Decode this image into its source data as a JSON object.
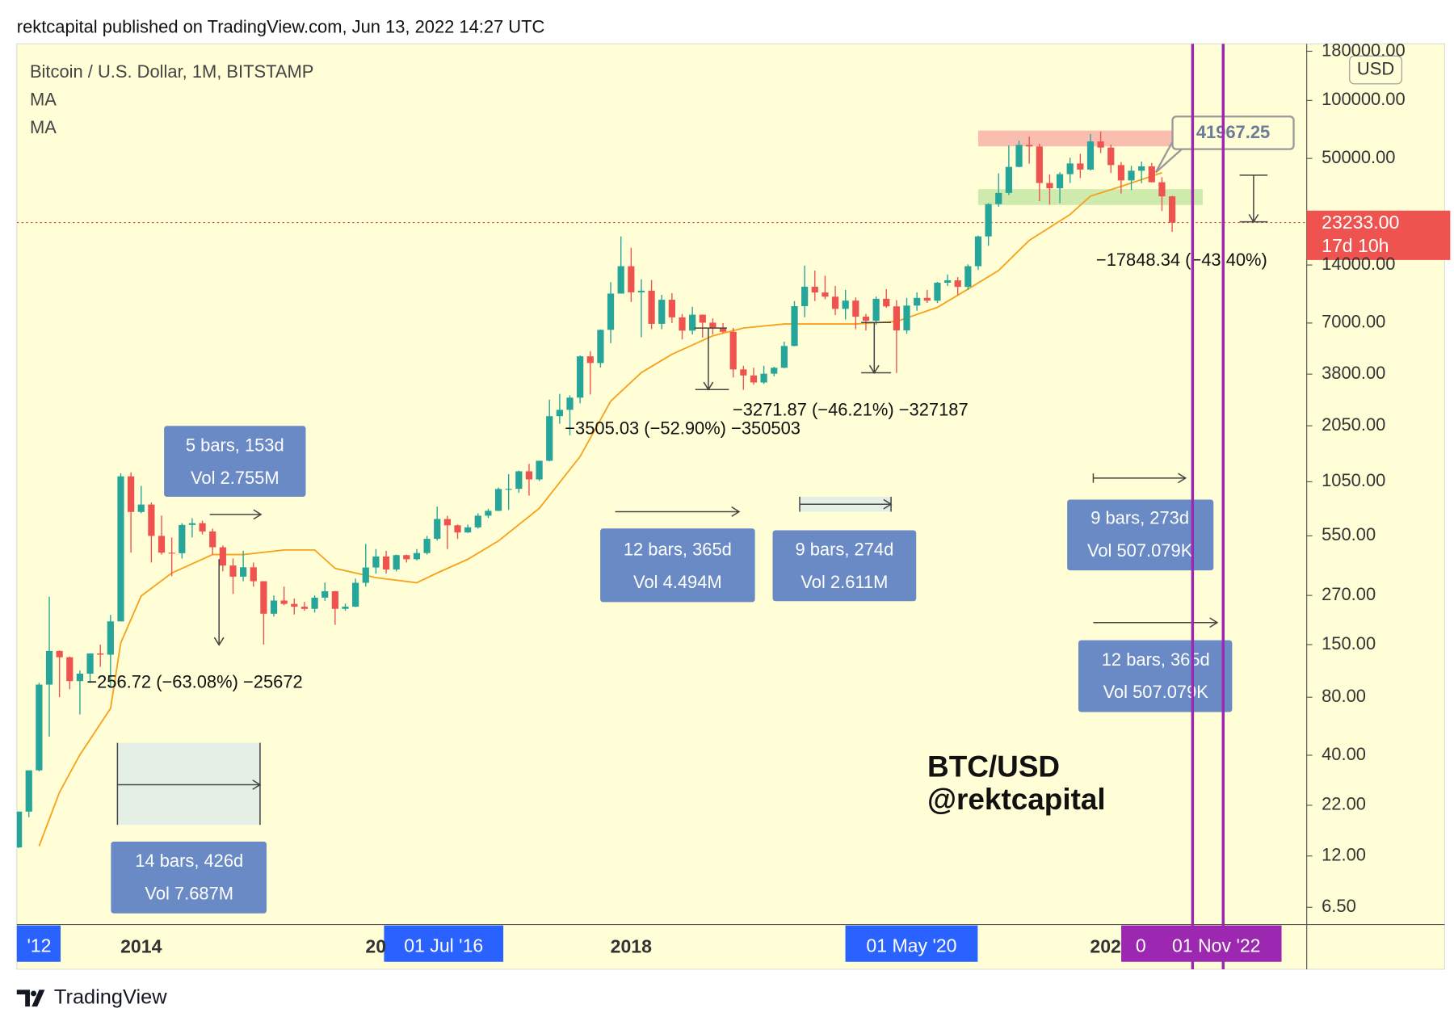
{
  "header": "rektcapital published on TradingView.com, Jun 13, 2022 14:27 UTC",
  "footer": "TradingView",
  "watermark": [
    "BTC/USD",
    "@rektcapital"
  ],
  "chart_data": {
    "type": "candlestick",
    "title": "Bitcoin / U.S. Dollar, 1M, BITSTAMP",
    "legend_items": [
      "MA",
      "MA"
    ],
    "y_unit": "USD",
    "log_scale": true,
    "up_color": "#26a69a",
    "down_color": "#ef5350",
    "x": [
      "2013-01",
      "2013-02",
      "2013-03",
      "2013-04",
      "2013-05",
      "2013-06",
      "2013-07",
      "2013-08",
      "2013-09",
      "2013-10",
      "2013-11",
      "2013-12",
      "2014-01",
      "2014-02",
      "2014-03",
      "2014-04",
      "2014-05",
      "2014-06",
      "2014-07",
      "2014-08",
      "2014-09",
      "2014-10",
      "2014-11",
      "2014-12",
      "2015-01",
      "2015-02",
      "2015-03",
      "2015-04",
      "2015-05",
      "2015-06",
      "2015-07",
      "2015-08",
      "2015-09",
      "2015-10",
      "2015-11",
      "2015-12",
      "2016-01",
      "2016-02",
      "2016-03",
      "2016-04",
      "2016-05",
      "2016-06",
      "2016-07",
      "2016-08",
      "2016-09",
      "2016-10",
      "2016-11",
      "2016-12",
      "2017-01",
      "2017-02",
      "2017-03",
      "2017-04",
      "2017-05",
      "2017-06",
      "2017-07",
      "2017-08",
      "2017-09",
      "2017-10",
      "2017-11",
      "2017-12",
      "2018-01",
      "2018-02",
      "2018-03",
      "2018-04",
      "2018-05",
      "2018-06",
      "2018-07",
      "2018-08",
      "2018-09",
      "2018-10",
      "2018-11",
      "2018-12",
      "2019-01",
      "2019-02",
      "2019-03",
      "2019-04",
      "2019-05",
      "2019-06",
      "2019-07",
      "2019-08",
      "2019-09",
      "2019-10",
      "2019-11",
      "2019-12",
      "2020-01",
      "2020-02",
      "2020-03",
      "2020-04",
      "2020-05",
      "2020-06",
      "2020-07",
      "2020-08",
      "2020-09",
      "2020-10",
      "2020-11",
      "2020-12",
      "2021-01",
      "2021-02",
      "2021-03",
      "2021-04",
      "2021-05",
      "2021-06",
      "2021-07",
      "2021-08",
      "2021-09",
      "2021-10",
      "2021-11",
      "2021-12",
      "2022-01",
      "2022-02",
      "2022-03",
      "2022-04",
      "2022-05",
      "2022-06"
    ],
    "open": [
      13.3,
      20.4,
      33.4,
      93,
      139,
      129,
      97,
      106,
      135,
      133,
      198,
      1120,
      732,
      800,
      550,
      450,
      447,
      627,
      640,
      580,
      480,
      386,
      338,
      378,
      320,
      217,
      254,
      244,
      236,
      230,
      263,
      284,
      230,
      236,
      314,
      377,
      430,
      368,
      437,
      416,
      448,
      531,
      673,
      624,
      573,
      609,
      700,
      742,
      963,
      965,
      1190,
      1080,
      1350,
      2300,
      2480,
      2870,
      4700,
      4340,
      6450,
      9950,
      13800,
      10100,
      10300,
      6930,
      9240,
      7490,
      6390,
      7730,
      7030,
      6630,
      6300,
      4020,
      3740,
      3440,
      3820,
      4100,
      5320,
      8560,
      10800,
      10080,
      9590,
      8290,
      9150,
      7550,
      7190,
      9350,
      8540,
      6410,
      8620,
      9450,
      9140,
      11330,
      11650,
      10780,
      13800,
      19700,
      28990,
      33100,
      45200,
      58800,
      57700,
      37300,
      35040,
      41460,
      47100,
      43790,
      61300,
      56950,
      46200,
      38470,
      43190,
      45510,
      37630,
      31790
    ],
    "high": [
      20.4,
      33.4,
      95,
      266,
      140,
      130,
      110,
      135,
      150,
      214,
      1163,
      1175,
      1000,
      820,
      700,
      540,
      640,
      680,
      660,
      600,
      490,
      420,
      460,
      400,
      320,
      270,
      300,
      260,
      250,
      270,
      315,
      285,
      245,
      330,
      500,
      470,
      460,
      440,
      440,
      470,
      550,
      780,
      700,
      630,
      630,
      720,
      760,
      980,
      1150,
      1200,
      1300,
      1350,
      2800,
      3000,
      2950,
      4750,
      5000,
      6470,
      11400,
      19700,
      17200,
      11800,
      11700,
      9800,
      10000,
      7800,
      8500,
      7750,
      7400,
      7000,
      6600,
      4200,
      4100,
      4200,
      4150,
      5600,
      9100,
      13900,
      13100,
      12300,
      10900,
      10400,
      9500,
      7800,
      9600,
      10500,
      9200,
      9450,
      10100,
      10400,
      11450,
      12500,
      12100,
      14100,
      19900,
      29300,
      41900,
      58400,
      61800,
      64900,
      59600,
      41300,
      42400,
      50500,
      52900,
      67000,
      69000,
      59000,
      47900,
      45800,
      48200,
      47400,
      40000,
      31990
    ],
    "low": [
      13.2,
      19.1,
      33,
      50,
      80,
      88,
      65,
      95,
      115,
      90,
      198,
      450,
      720,
      400,
      440,
      340,
      420,
      540,
      560,
      440,
      360,
      275,
      320,
      300,
      150,
      210,
      240,
      215,
      225,
      220,
      253,
      190,
      225,
      235,
      300,
      350,
      350,
      360,
      400,
      410,
      440,
      520,
      470,
      530,
      570,
      600,
      680,
      740,
      750,
      920,
      890,
      1060,
      1340,
      2100,
      1830,
      2680,
      2980,
      4110,
      5500,
      9950,
      9000,
      5900,
      6500,
      6500,
      7000,
      5750,
      6100,
      5880,
      6100,
      6200,
      3650,
      3150,
      3350,
      3380,
      3700,
      4080,
      5300,
      7500,
      9100,
      9300,
      7700,
      7300,
      6500,
      6400,
      6850,
      8400,
      3850,
      6150,
      8100,
      8900,
      8900,
      10900,
      9800,
      10400,
      13200,
      17600,
      28100,
      32300,
      45000,
      47000,
      30000,
      28800,
      29300,
      37300,
      39600,
      43300,
      53300,
      42000,
      32900,
      34300,
      37200,
      37600,
      26700,
      20800
    ],
    "close": [
      20.4,
      33.4,
      93,
      139,
      129,
      97,
      106,
      135,
      133,
      198,
      1120,
      732,
      800,
      550,
      450,
      447,
      627,
      640,
      580,
      480,
      386,
      338,
      378,
      320,
      217,
      254,
      244,
      236,
      230,
      263,
      284,
      230,
      236,
      314,
      377,
      430,
      368,
      437,
      416,
      448,
      531,
      673,
      624,
      573,
      609,
      700,
      742,
      963,
      965,
      1190,
      1080,
      1350,
      2300,
      2480,
      2870,
      4700,
      4340,
      6450,
      9950,
      13800,
      10100,
      10300,
      6930,
      9240,
      7490,
      6390,
      7730,
      7030,
      6630,
      6300,
      4020,
      3740,
      3440,
      3820,
      4100,
      5320,
      8560,
      10800,
      10080,
      9590,
      8290,
      9150,
      7550,
      7190,
      9350,
      8540,
      6410,
      8620,
      9450,
      9140,
      11330,
      11650,
      10780,
      13800,
      19700,
      28990,
      33100,
      45200,
      58800,
      57700,
      37300,
      35040,
      41460,
      47100,
      43790,
      61300,
      56950,
      46200,
      38470,
      43190,
      45510,
      37630,
      31790,
      23233
    ],
    "ma": {
      "color": "#f7a21b",
      "x": [
        "2013-03",
        "2013-05",
        "2013-07",
        "2013-10",
        "2013-11",
        "2014-01",
        "2014-04",
        "2014-08",
        "2014-11",
        "2015-03",
        "2015-06",
        "2015-08",
        "2015-12",
        "2016-04",
        "2016-06",
        "2016-09",
        "2016-12",
        "2017-04",
        "2017-08",
        "2017-11",
        "2018-02",
        "2018-05",
        "2018-09",
        "2018-12",
        "2019-04",
        "2019-08",
        "2019-11",
        "2020-03",
        "2020-07",
        "2020-10",
        "2021-01",
        "2021-04",
        "2021-08",
        "2021-10",
        "2022-01",
        "2022-05"
      ],
      "values": [
        13.5,
        25.7,
        40.2,
        70,
        153,
        268,
        353,
        440,
        440,
        465,
        465,
        373,
        334,
        314,
        353,
        416,
        518,
        765,
        1420,
        2750,
        3870,
        4820,
        6010,
        6590,
        6920,
        6920,
        6920,
        7130,
        8440,
        10500,
        13100,
        18800,
        25600,
        31900,
        35800,
        42200
      ]
    },
    "ylim": [
      5.29,
      196800
    ],
    "yticks": [
      {
        "value": 180000,
        "label": "180000.00"
      },
      {
        "value": 100000,
        "label": "100000.00"
      },
      {
        "value": 50000,
        "label": "50000.00"
      },
      {
        "value": 14000,
        "label": "14000.00"
      },
      {
        "value": 7000,
        "label": "7000.00"
      },
      {
        "value": 3800,
        "label": "3800.00"
      },
      {
        "value": 2050,
        "label": "2050.00"
      },
      {
        "value": 1050,
        "label": "1050.00"
      },
      {
        "value": 550,
        "label": "550.00"
      },
      {
        "value": 270,
        "label": "270.00"
      },
      {
        "value": 150,
        "label": "150.00"
      },
      {
        "value": 80,
        "label": "80.00"
      },
      {
        "value": 40,
        "label": "40.00"
      },
      {
        "value": 22,
        "label": "22.00"
      },
      {
        "value": 12,
        "label": "12.00"
      },
      {
        "value": 6.5,
        "label": "6.50"
      }
    ],
    "xlim": [
      "2013-01",
      "2023-07"
    ],
    "xticks": [
      {
        "value": "2014-01",
        "label": "2014"
      },
      {
        "value": "2016-01",
        "label": "20"
      },
      {
        "value": "2018-01",
        "label": "2018"
      },
      {
        "value": "2022-01",
        "label": "202"
      }
    ],
    "x_highlight_labels": [
      "'12",
      "01 Jul '16",
      "01 May '20",
      "0",
      "01 Nov '22"
    ],
    "last_price": {
      "value": 23233,
      "label": "23233.00"
    },
    "countdown": "17d 10h",
    "callout_price": 41967.25,
    "zones": [
      {
        "x": [
          "2020-11",
          "2022-06"
        ],
        "y": [
          57800,
          69800
        ],
        "color": "#f8b3a8"
      },
      {
        "x": [
          "2020-11",
          "2022-09"
        ],
        "y": [
          28680,
          34660
        ],
        "color": "#c5e6a6"
      }
    ],
    "vlines": [
      {
        "x": "2022-08",
        "color": "#9c27b0"
      },
      {
        "x": "2022-11",
        "color": "#9c27b0"
      }
    ],
    "measurements": [
      [
        "5 bars, 153d",
        "Vol 2.755M"
      ],
      [
        "14 bars, 426d",
        "Vol 7.687M"
      ],
      [
        "12 bars, 365d",
        "Vol 4.494M"
      ],
      [
        "9 bars, 274d",
        "Vol 2.611M"
      ],
      [
        "9 bars, 273d",
        "Vol 507.079K"
      ],
      [
        "12 bars, 365d",
        "Vol 507.079K"
      ]
    ],
    "changes": [
      "−256.72 (−63.08%) −25672",
      "−3505.03 (−52.90%) −350503",
      "−3271.87 (−46.21%) −327187",
      "−17848.34 (−43.40%)"
    ]
  }
}
